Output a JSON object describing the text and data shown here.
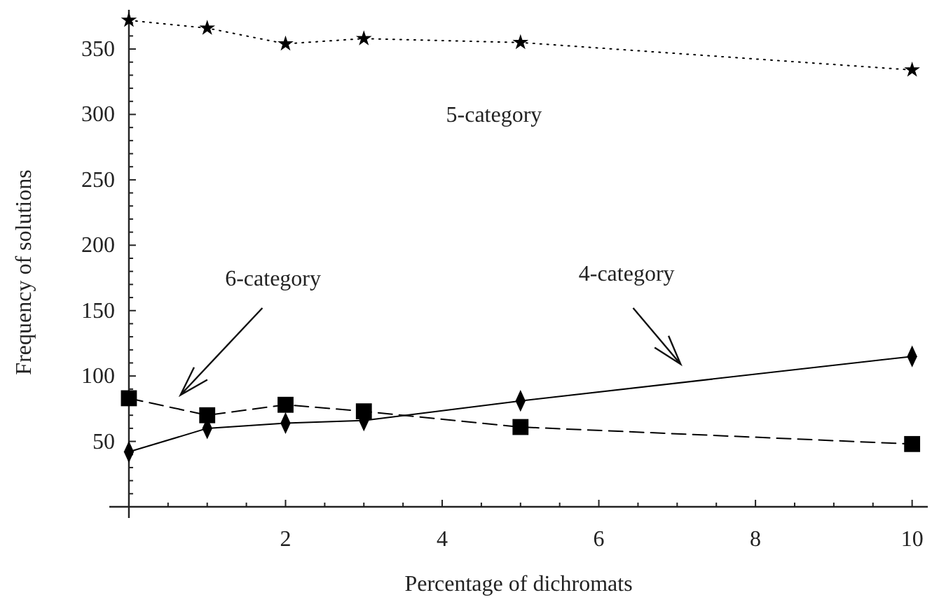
{
  "chart_data": {
    "type": "line",
    "xlabel": "Percentage of dichromats",
    "ylabel": "Frequency of solutions",
    "x": [
      0,
      1,
      2,
      3,
      5,
      10
    ],
    "series": [
      {
        "name": "5-category",
        "color": "#000000",
        "marker": "star",
        "line_style": "dotted",
        "values": [
          372,
          366,
          354,
          358,
          355,
          334
        ]
      },
      {
        "name": "6-category",
        "color": "#000000",
        "marker": "square",
        "line_style": "dashed",
        "values": [
          83,
          70,
          78,
          73,
          61,
          48
        ]
      },
      {
        "name": "4-category",
        "color": "#000000",
        "marker": "diamond",
        "line_style": "solid",
        "values": [
          42,
          60,
          64,
          66,
          81,
          115
        ]
      }
    ],
    "xlim": [
      -0.25,
      10.2
    ],
    "ylim": [
      0,
      380
    ],
    "xticks": [
      {
        "value": 0,
        "label": null
      },
      {
        "value": 0.5,
        "label": null
      },
      {
        "value": 1,
        "label": null
      },
      {
        "value": 1.5,
        "label": null
      },
      2,
      {
        "value": 2.5,
        "label": null
      },
      {
        "value": 3,
        "label": null
      },
      {
        "value": 3.5,
        "label": null
      },
      4,
      {
        "value": 4.5,
        "label": null
      },
      {
        "value": 5,
        "label": null
      },
      {
        "value": 5.5,
        "label": null
      },
      6,
      {
        "value": 6.5,
        "label": null
      },
      {
        "value": 7,
        "label": null
      },
      {
        "value": 7.5,
        "label": null
      },
      8,
      {
        "value": 8.5,
        "label": null
      },
      {
        "value": 9,
        "label": null
      },
      {
        "value": 9.5,
        "label": null
      },
      10
    ],
    "yticks": [
      {
        "value": 10,
        "label": null
      },
      {
        "value": 20,
        "label": null
      },
      {
        "value": 30,
        "label": null
      },
      {
        "value": 40,
        "label": null
      },
      50,
      {
        "value": 60,
        "label": null
      },
      {
        "value": 70,
        "label": null
      },
      {
        "value": 80,
        "label": null
      },
      {
        "value": 90,
        "label": null
      },
      100,
      {
        "value": 110,
        "label": null
      },
      {
        "value": 120,
        "label": null
      },
      {
        "value": 130,
        "label": null
      },
      {
        "value": 140,
        "label": null
      },
      150,
      {
        "value": 160,
        "label": null
      },
      {
        "value": 170,
        "label": null
      },
      {
        "value": 180,
        "label": null
      },
      {
        "value": 190,
        "label": null
      },
      200,
      {
        "value": 210,
        "label": null
      },
      {
        "value": 220,
        "label": null
      },
      {
        "value": 230,
        "label": null
      },
      {
        "value": 240,
        "label": null
      },
      250,
      {
        "value": 260,
        "label": null
      },
      {
        "value": 270,
        "label": null
      },
      {
        "value": 280,
        "label": null
      },
      {
        "value": 290,
        "label": null
      },
      300,
      {
        "value": 310,
        "label": null
      },
      {
        "value": 320,
        "label": null
      },
      {
        "value": 330,
        "label": null
      },
      {
        "value": 340,
        "label": null
      },
      350,
      {
        "value": 360,
        "label": null
      },
      {
        "value": 370,
        "label": null
      }
    ],
    "grid": false
  }
}
